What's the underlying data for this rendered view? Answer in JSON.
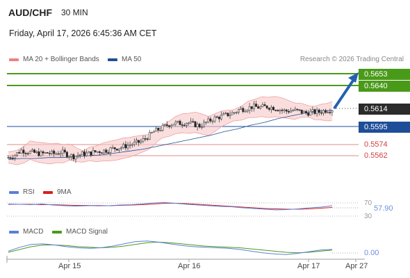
{
  "header": {
    "symbol": "AUD/CHF",
    "timeframe": "30 MIN",
    "datetime": "Friday, April 17, 2026 6:45:36 AM CET",
    "credit": "Research © 2026 Trading Central"
  },
  "legend_main": [
    {
      "label": "MA 20 + Bollinger Bands",
      "color": "#f08080"
    },
    {
      "label": "MA 50",
      "color": "#1f4e99"
    }
  ],
  "legend_rsi": [
    {
      "label": "RSI",
      "color": "#5b7fd6"
    },
    {
      "label": "9MA",
      "color": "#d62020"
    }
  ],
  "legend_macd": [
    {
      "label": "MACD",
      "color": "#5b7fd6"
    },
    {
      "label": "MACD Signal",
      "color": "#4a9a1a"
    }
  ],
  "colors": {
    "up": "#e8e8e8",
    "down": "#222222",
    "resistance": "#4a9a1a",
    "pivot": "#1f4e99",
    "support": "#e06060",
    "bollinger_fill": "#f6c8c8"
  },
  "chart_data": [
    {
      "type": "line",
      "title": "AUD/CHF 30 MIN",
      "y_range": [
        0.5555,
        0.566
      ],
      "x_labels": [
        "Apr 15",
        "Apr 16",
        "Apr 17",
        "Apr 27"
      ],
      "price_series": [
        0.5562,
        0.5565,
        0.557,
        0.5568,
        0.5567,
        0.5566,
        0.5567,
        0.5566,
        0.5568,
        0.5565,
        0.5563,
        0.5566,
        0.5566,
        0.5568,
        0.5569,
        0.557,
        0.5572,
        0.5573,
        0.5575,
        0.5577,
        0.5579,
        0.5584,
        0.559,
        0.5593,
        0.5597,
        0.5599,
        0.5599,
        0.56,
        0.5598,
        0.5596,
        0.56,
        0.5604,
        0.5606,
        0.5608,
        0.561,
        0.5614,
        0.5615,
        0.5617,
        0.5616,
        0.5617,
        0.5616,
        0.5614,
        0.5612,
        0.5613,
        0.5612,
        0.561,
        0.5611,
        0.5611,
        0.5613,
        0.5614
      ],
      "ma50_series": [
        0.556,
        0.5561,
        0.5561,
        0.5562,
        0.5562,
        0.5563,
        0.5564,
        0.5565,
        0.5567,
        0.5569,
        0.5571,
        0.5574,
        0.5577,
        0.558,
        0.5583,
        0.5586,
        0.559,
        0.5593,
        0.5597,
        0.56,
        0.5604,
        0.5607,
        0.561,
        0.5612,
        0.5613
      ],
      "forecast_arrow": {
        "from": 0.5614,
        "to": 0.5653
      },
      "levels": [
        {
          "value": "0.5653",
          "kind": "resistance"
        },
        {
          "value": "0.5640",
          "kind": "resistance"
        },
        {
          "value": "0.5614",
          "kind": "current"
        },
        {
          "value": "0.5595",
          "kind": "pivot"
        },
        {
          "value": "0.5574",
          "kind": "support"
        },
        {
          "value": "0.5562",
          "kind": "support"
        }
      ]
    },
    {
      "type": "line",
      "title": "RSI",
      "y_range": [
        30,
        70
      ],
      "ticks": [
        "70",
        "30"
      ],
      "current_value": "57.90",
      "rsi": [
        63,
        62,
        61,
        63,
        60,
        58,
        57,
        58,
        59,
        58,
        60,
        61,
        63,
        66,
        67,
        65,
        62,
        60,
        58,
        56,
        55,
        52,
        50,
        48,
        46,
        47,
        49,
        52,
        54,
        57.9
      ],
      "rsi_ma": [
        62,
        62,
        62,
        61,
        61,
        60,
        59,
        59,
        58,
        58,
        59,
        60,
        61,
        63,
        65,
        65,
        64,
        62,
        60,
        58,
        56,
        54,
        52,
        50,
        49,
        48,
        48,
        49,
        51,
        53
      ]
    },
    {
      "type": "line",
      "title": "MACD",
      "current_value": "0.00",
      "macd": [
        -0.3,
        0.4,
        0.9,
        1.0,
        0.8,
        0.5,
        0.3,
        0.2,
        0.3,
        0.6,
        1.0,
        1.4,
        1.5,
        1.3,
        1.0,
        0.7,
        0.5,
        0.4,
        0.3,
        0.2,
        0.0,
        -0.3,
        -0.6,
        -0.8,
        -0.9,
        -0.7,
        -0.4,
        -0.1,
        0.0
      ],
      "signal": [
        -0.5,
        0.0,
        0.5,
        0.8,
        0.8,
        0.7,
        0.5,
        0.4,
        0.3,
        0.4,
        0.6,
        0.9,
        1.2,
        1.3,
        1.2,
        1.0,
        0.8,
        0.6,
        0.5,
        0.4,
        0.3,
        0.1,
        -0.1,
        -0.3,
        -0.5,
        -0.6,
        -0.5,
        -0.3,
        -0.1
      ]
    }
  ]
}
